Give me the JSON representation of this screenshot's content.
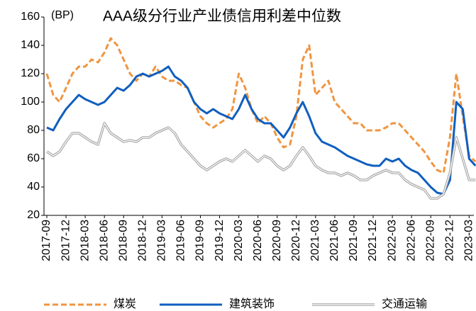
{
  "chart_data": {
    "type": "line",
    "title": "AAA级分行业产业债信用利差中位数",
    "y_label": "(BP)",
    "categories": [
      "2017-09",
      null,
      null,
      "2017-12",
      null,
      null,
      "2018-03",
      null,
      null,
      "2018-06",
      null,
      null,
      "2018-09",
      null,
      null,
      "2018-12",
      null,
      null,
      "2019-03",
      null,
      null,
      "2019-06",
      null,
      null,
      "2019-09",
      null,
      null,
      "2019-12",
      null,
      null,
      "2020-03",
      null,
      null,
      "2020-06",
      null,
      null,
      "2020-09",
      null,
      null,
      "2020-12",
      null,
      null,
      "2021-03",
      null,
      null,
      "2021-06",
      null,
      null,
      "2021-09",
      null,
      null,
      "2021-12",
      null,
      null,
      "2022-03",
      null,
      null,
      "2022-06",
      null,
      null,
      "2022-09",
      null,
      null,
      "2022-12",
      null,
      null,
      "2023-03",
      null
    ],
    "series": [
      {
        "name": "煤炭",
        "color": "#f0953f",
        "style": "dashed",
        "values": [
          120,
          105,
          100,
          110,
          120,
          125,
          125,
          130,
          128,
          135,
          145,
          140,
          130,
          120,
          115,
          120,
          118,
          125,
          118,
          115,
          115,
          112,
          110,
          100,
          90,
          85,
          82,
          85,
          88,
          95,
          120,
          110,
          95,
          85,
          90,
          85,
          75,
          68,
          70,
          90,
          130,
          140,
          105,
          110,
          115,
          100,
          95,
          90,
          85,
          85,
          80,
          80,
          80,
          82,
          85,
          85,
          80,
          75,
          70,
          65,
          58,
          52,
          50,
          75,
          120,
          90,
          62,
          58
        ]
      },
      {
        "name": "建筑装饰",
        "color": "#0f5fbf",
        "style": "solid",
        "values": [
          82,
          80,
          88,
          95,
          100,
          105,
          102,
          100,
          98,
          100,
          105,
          110,
          108,
          112,
          118,
          120,
          118,
          120,
          122,
          125,
          118,
          115,
          110,
          100,
          95,
          92,
          95,
          92,
          90,
          88,
          95,
          105,
          95,
          88,
          85,
          85,
          80,
          75,
          82,
          92,
          100,
          90,
          78,
          72,
          70,
          68,
          65,
          62,
          60,
          58,
          56,
          55,
          55,
          60,
          58,
          60,
          55,
          52,
          50,
          45,
          40,
          36,
          35,
          45,
          100,
          95,
          60,
          55
        ]
      },
      {
        "name": "交通运输",
        "color": "#a6a6a6",
        "style": "double",
        "values": [
          65,
          62,
          65,
          72,
          78,
          78,
          75,
          72,
          70,
          85,
          78,
          75,
          72,
          73,
          72,
          75,
          75,
          78,
          80,
          82,
          78,
          70,
          65,
          60,
          55,
          52,
          55,
          58,
          60,
          58,
          62,
          66,
          62,
          58,
          62,
          60,
          55,
          52,
          55,
          62,
          68,
          62,
          55,
          52,
          50,
          50,
          48,
          50,
          48,
          45,
          45,
          48,
          50,
          52,
          50,
          50,
          45,
          42,
          40,
          38,
          32,
          32,
          35,
          50,
          75,
          60,
          45,
          45
        ]
      }
    ],
    "ylim": [
      20,
      160
    ],
    "yticks": [
      20,
      40,
      60,
      80,
      100,
      120,
      140,
      160
    ],
    "legend": "bottom"
  }
}
